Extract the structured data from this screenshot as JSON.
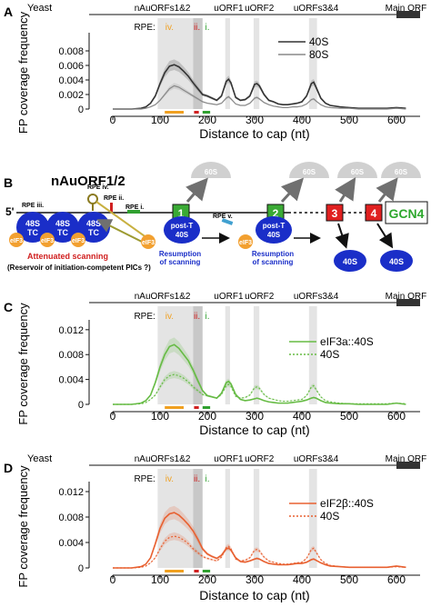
{
  "colors": {
    "accent_orange": "#f0a020",
    "rpe_red": "#d02020",
    "rpe_green": "#30a030",
    "blue_40s": "#1a2ec8",
    "eif3_orange": "#f2a030",
    "uorf_green": "#3aaa35",
    "uorf_red": "#e02020",
    "gcn4_green": "#2ea82e",
    "highlight": "#dddddd",
    "eif3a_line": "#66bb44",
    "eif2b_line": "#e86030"
  },
  "panel_b": {
    "letter": "B",
    "title": "nAuORF1/2",
    "five_prime": "5'",
    "rpe_iii": "RPE iii.",
    "rpe_iv": "RPE iv.",
    "rpe_ii": "RPE ii.",
    "rpe_i": "RPE i.",
    "rpe_v": "RPE v.",
    "s48_label": "48S",
    "tc_label": "TC",
    "eif3_label": "eIF3",
    "post_t_label": "post-T",
    "s40_label": "40S",
    "s60_label": "60S",
    "uorf1": "1",
    "uorf2": "2",
    "uorf3": "3",
    "uorf4": "4",
    "gcn4": "GCN4",
    "attenuated": "Attenuated scanning",
    "reservoir": "(Reservoir of initiation-competent PICs ?)",
    "resumption1_l1": "Resumption",
    "resumption1_l2": "of scanning",
    "resumption2_l1": "Resumption",
    "resumption2_l2": "of scanning"
  },
  "chart_data": [
    {
      "type": "line",
      "panel": "A",
      "top_label": "Yeast",
      "header_labels": [
        "nAuORFs1&2",
        "uORF1",
        "uORF2",
        "uORFs3&4",
        "Main ORF"
      ],
      "rpe_prefix": "RPE:",
      "rpe_labels": [
        "iv.",
        "ii.",
        "i."
      ],
      "xlabel": "Distance to cap (nt)",
      "ylabel": "FP coverage frequency",
      "xlim": [
        -50,
        650
      ],
      "ylim": [
        0,
        0.01
      ],
      "xticks": [
        0,
        100,
        200,
        300,
        400,
        500,
        600
      ],
      "yticks": [
        0,
        0.002,
        0.004,
        0.006,
        0.008
      ],
      "ytick_labels": [
        "0",
        "0.002",
        "0.004",
        "0.006",
        "0.008"
      ],
      "x": [
        0,
        20,
        40,
        60,
        70,
        80,
        90,
        100,
        110,
        120,
        130,
        140,
        150,
        160,
        170,
        180,
        190,
        200,
        210,
        220,
        230,
        240,
        245,
        250,
        260,
        270,
        280,
        290,
        300,
        305,
        310,
        320,
        330,
        340,
        350,
        360,
        370,
        380,
        390,
        400,
        410,
        420,
        425,
        430,
        440,
        450,
        460,
        480,
        500,
        520,
        540,
        560,
        580,
        600,
        620
      ],
      "series": [
        {
          "name": "40S",
          "values": [
            0.0,
            0.0,
            0.0,
            0.0001,
            0.0003,
            0.0008,
            0.0018,
            0.0035,
            0.005,
            0.0059,
            0.0061,
            0.0058,
            0.0052,
            0.0045,
            0.0036,
            0.0028,
            0.002,
            0.0018,
            0.0015,
            0.0012,
            0.0018,
            0.0038,
            0.0041,
            0.0036,
            0.0016,
            0.0012,
            0.0013,
            0.0018,
            0.0034,
            0.0035,
            0.0032,
            0.002,
            0.0012,
            0.001,
            0.0007,
            0.0006,
            0.0006,
            0.0007,
            0.0008,
            0.001,
            0.0018,
            0.0035,
            0.0037,
            0.003,
            0.0015,
            0.0008,
            0.0005,
            0.0003,
            0.0002,
            0.0001,
            0.0001,
            0.0001,
            0.0001,
            0.0002,
            0.0001
          ]
        },
        {
          "name": "80S",
          "values": [
            0.0,
            0.0,
            0.0,
            0.0,
            0.0001,
            0.0003,
            0.0006,
            0.0012,
            0.002,
            0.0028,
            0.0032,
            0.003,
            0.0026,
            0.0022,
            0.0018,
            0.0014,
            0.001,
            0.0008,
            0.0007,
            0.0006,
            0.0008,
            0.0015,
            0.0017,
            0.0014,
            0.0007,
            0.0005,
            0.0005,
            0.0008,
            0.0015,
            0.0016,
            0.0014,
            0.0009,
            0.0006,
            0.0004,
            0.0003,
            0.0002,
            0.0002,
            0.0003,
            0.0003,
            0.0004,
            0.0007,
            0.0013,
            0.0014,
            0.0011,
            0.0006,
            0.0003,
            0.0002,
            0.0001,
            0.0001,
            0.0,
            0.0,
            0.0,
            0.0,
            0.0001,
            0.0
          ]
        }
      ],
      "series_colors": [
        "#333333",
        "#888888"
      ],
      "legend_position": "top-right"
    },
    {
      "type": "line",
      "panel": "C",
      "header_labels": [
        "nAuORFs1&2",
        "uORF1",
        "uORF2",
        "uORFs3&4",
        "Main ORF"
      ],
      "rpe_prefix": "RPE:",
      "rpe_labels": [
        "iv.",
        "ii.",
        "i."
      ],
      "xlabel": "Distance to cap (nt)",
      "ylabel": "FP coverage frequency",
      "xlim": [
        -50,
        650
      ],
      "ylim": [
        0,
        0.013
      ],
      "xticks": [
        0,
        100,
        200,
        300,
        400,
        500,
        600
      ],
      "yticks": [
        0,
        0.004,
        0.008,
        0.012
      ],
      "ytick_labels": [
        "0",
        "0.004",
        "0.008",
        "0.012"
      ],
      "x": [
        0,
        20,
        40,
        60,
        70,
        80,
        90,
        100,
        110,
        120,
        130,
        140,
        150,
        160,
        170,
        180,
        190,
        200,
        210,
        220,
        230,
        240,
        245,
        250,
        260,
        270,
        280,
        290,
        300,
        305,
        310,
        320,
        330,
        340,
        350,
        360,
        370,
        380,
        390,
        400,
        410,
        420,
        425,
        430,
        440,
        450,
        460,
        480,
        500,
        520,
        540,
        560,
        580,
        600,
        620
      ],
      "series": [
        {
          "name": "eIF3a::40S",
          "values": [
            0.0,
            0.0,
            0.0,
            0.0002,
            0.0006,
            0.0015,
            0.0035,
            0.006,
            0.008,
            0.0093,
            0.0096,
            0.009,
            0.008,
            0.007,
            0.0055,
            0.0038,
            0.0022,
            0.0014,
            0.0012,
            0.001,
            0.0018,
            0.0035,
            0.0037,
            0.0033,
            0.0016,
            0.0008,
            0.0006,
            0.0007,
            0.0009,
            0.001,
            0.0009,
            0.0006,
            0.0004,
            0.0003,
            0.0002,
            0.0002,
            0.0002,
            0.0003,
            0.0004,
            0.0005,
            0.0007,
            0.001,
            0.0011,
            0.001,
            0.0006,
            0.0003,
            0.0002,
            0.0001,
            0.0001,
            0.0,
            0.0,
            0.0,
            0.0,
            0.0002,
            0.0
          ]
        },
        {
          "name": "40S",
          "values": [
            0.0,
            0.0,
            0.0,
            0.0001,
            0.0003,
            0.0008,
            0.0015,
            0.0028,
            0.004,
            0.0046,
            0.0048,
            0.0046,
            0.0042,
            0.0036,
            0.0028,
            0.0022,
            0.0016,
            0.0014,
            0.0012,
            0.001,
            0.0016,
            0.003,
            0.0032,
            0.0029,
            0.0013,
            0.001,
            0.0011,
            0.0015,
            0.0027,
            0.0028,
            0.0026,
            0.0016,
            0.001,
            0.0008,
            0.0006,
            0.0005,
            0.0005,
            0.0006,
            0.0007,
            0.0008,
            0.0014,
            0.0028,
            0.003,
            0.0024,
            0.0012,
            0.0006,
            0.0004,
            0.0002,
            0.0001,
            0.0001,
            0.0001,
            0.0001,
            0.0001,
            0.0002,
            0.0001
          ]
        }
      ],
      "series_colors": [
        "#66bb44",
        "#66bb44"
      ],
      "legend_position": "top-right"
    },
    {
      "type": "line",
      "panel": "D",
      "top_label": "Yeast",
      "header_labels": [
        "nAuORFs1&2",
        "uORF1",
        "uORF2",
        "uORFs3&4",
        "Main ORF"
      ],
      "rpe_prefix": "RPE:",
      "rpe_labels": [
        "iv.",
        "ii.",
        "i."
      ],
      "xlabel": "Distance to cap (nt)",
      "ylabel": "FP coverage frequency",
      "xlim": [
        -50,
        650
      ],
      "ylim": [
        0,
        0.013
      ],
      "xticks": [
        0,
        100,
        200,
        300,
        400,
        500,
        600
      ],
      "yticks": [
        0,
        0.004,
        0.008,
        0.012
      ],
      "ytick_labels": [
        "0",
        "0.004",
        "0.008",
        "0.012"
      ],
      "x": [
        0,
        20,
        40,
        60,
        70,
        80,
        90,
        100,
        110,
        120,
        130,
        140,
        150,
        160,
        170,
        180,
        190,
        200,
        210,
        220,
        230,
        240,
        245,
        250,
        260,
        270,
        280,
        290,
        300,
        305,
        310,
        320,
        330,
        340,
        350,
        360,
        370,
        380,
        390,
        400,
        410,
        420,
        425,
        430,
        440,
        450,
        460,
        480,
        500,
        520,
        540,
        560,
        580,
        600,
        620
      ],
      "series": [
        {
          "name": "eIF2β::40S",
          "values": [
            0.0,
            0.0,
            0.0,
            0.0002,
            0.0006,
            0.0016,
            0.0038,
            0.0062,
            0.0078,
            0.0085,
            0.0087,
            0.0083,
            0.0076,
            0.0068,
            0.0058,
            0.0045,
            0.003,
            0.0022,
            0.0018,
            0.0015,
            0.002,
            0.003,
            0.0031,
            0.0028,
            0.0016,
            0.001,
            0.0009,
            0.0011,
            0.0014,
            0.0015,
            0.0014,
            0.001,
            0.0007,
            0.0006,
            0.0005,
            0.0005,
            0.0005,
            0.0006,
            0.0007,
            0.0007,
            0.0009,
            0.0013,
            0.0014,
            0.0012,
            0.0008,
            0.0005,
            0.0003,
            0.0002,
            0.0001,
            0.0001,
            0.0001,
            0.0001,
            0.0001,
            0.0003,
            0.0001
          ]
        },
        {
          "name": "40S",
          "values": [
            0.0,
            0.0,
            0.0,
            0.0001,
            0.0003,
            0.0008,
            0.0016,
            0.003,
            0.0042,
            0.0048,
            0.005,
            0.0048,
            0.0044,
            0.0038,
            0.003,
            0.0024,
            0.0018,
            0.0015,
            0.0013,
            0.0011,
            0.0017,
            0.0032,
            0.0034,
            0.003,
            0.0014,
            0.0011,
            0.0012,
            0.0016,
            0.0028,
            0.0029,
            0.0027,
            0.0017,
            0.0011,
            0.0009,
            0.0007,
            0.0006,
            0.0006,
            0.0007,
            0.0008,
            0.0009,
            0.0015,
            0.0029,
            0.0031,
            0.0025,
            0.0013,
            0.0007,
            0.0004,
            0.0002,
            0.0001,
            0.0001,
            0.0001,
            0.0001,
            0.0001,
            0.0002,
            0.0001
          ]
        }
      ],
      "series_colors": [
        "#e86030",
        "#e86030"
      ],
      "legend_position": "top-right"
    }
  ]
}
